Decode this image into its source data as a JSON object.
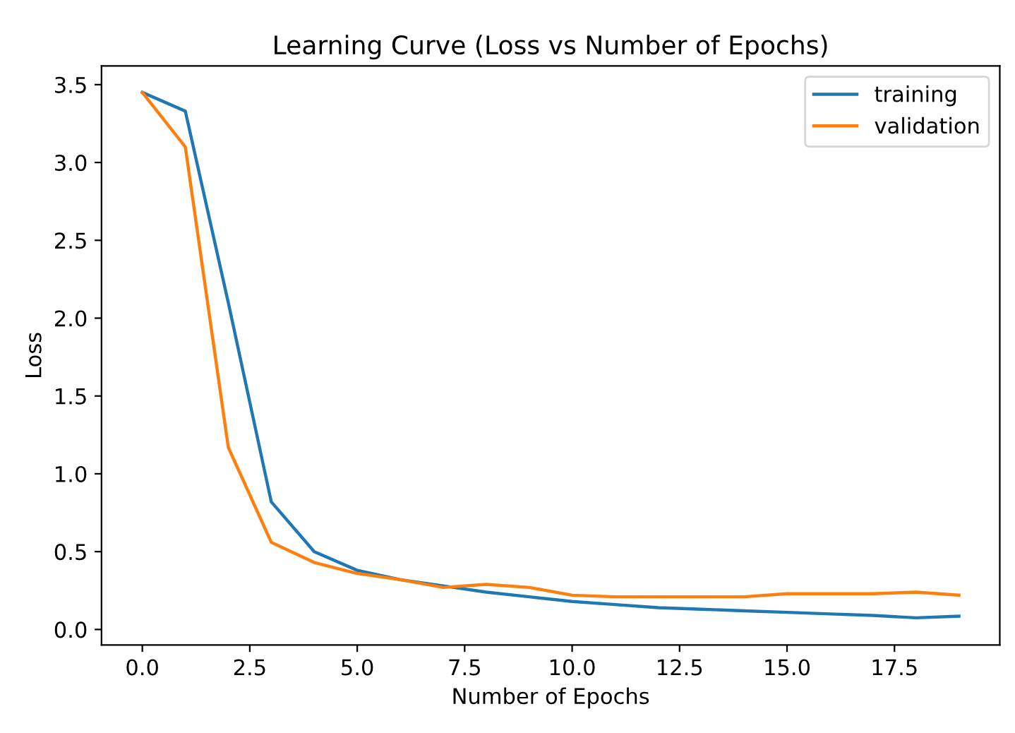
{
  "chart_data": {
    "type": "line",
    "title": "Learning Curve (Loss vs Number of Epochs)",
    "xlabel": "Number of Epochs",
    "ylabel": "Loss",
    "x": [
      0,
      1,
      2,
      3,
      4,
      5,
      6,
      7,
      8,
      9,
      10,
      11,
      12,
      13,
      14,
      15,
      16,
      17,
      18,
      19
    ],
    "series": [
      {
        "name": "training",
        "color": "#1f77b4",
        "values": [
          3.45,
          3.33,
          2.1,
          0.82,
          0.5,
          0.38,
          0.32,
          0.28,
          0.24,
          0.21,
          0.18,
          0.16,
          0.14,
          0.13,
          0.12,
          0.11,
          0.1,
          0.09,
          0.075,
          0.085
        ]
      },
      {
        "name": "validation",
        "color": "#ff7f0e",
        "values": [
          3.45,
          3.1,
          1.17,
          0.56,
          0.43,
          0.36,
          0.32,
          0.27,
          0.29,
          0.27,
          0.22,
          0.21,
          0.21,
          0.21,
          0.21,
          0.23,
          0.23,
          0.23,
          0.24,
          0.22
        ]
      }
    ],
    "xlim": [
      -0.95,
      19.95
    ],
    "ylim": [
      -0.1,
      3.62
    ],
    "xticks": [
      {
        "value": 0,
        "label": "0.0"
      },
      {
        "value": 2.5,
        "label": "2.5"
      },
      {
        "value": 5,
        "label": "5.0"
      },
      {
        "value": 7.5,
        "label": "7.5"
      },
      {
        "value": 10,
        "label": "10.0"
      },
      {
        "value": 12.5,
        "label": "12.5"
      },
      {
        "value": 15,
        "label": "15.0"
      },
      {
        "value": 17.5,
        "label": "17.5"
      }
    ],
    "yticks": [
      {
        "value": 0,
        "label": "0.0"
      },
      {
        "value": 0.5,
        "label": "0.5"
      },
      {
        "value": 1,
        "label": "1.0"
      },
      {
        "value": 1.5,
        "label": "1.5"
      },
      {
        "value": 2,
        "label": "2.0"
      },
      {
        "value": 2.5,
        "label": "2.5"
      },
      {
        "value": 3,
        "label": "3.0"
      },
      {
        "value": 3.5,
        "label": "3.5"
      }
    ],
    "legend": "top right",
    "grid": false,
    "line_style": "solid",
    "marker": "none"
  }
}
